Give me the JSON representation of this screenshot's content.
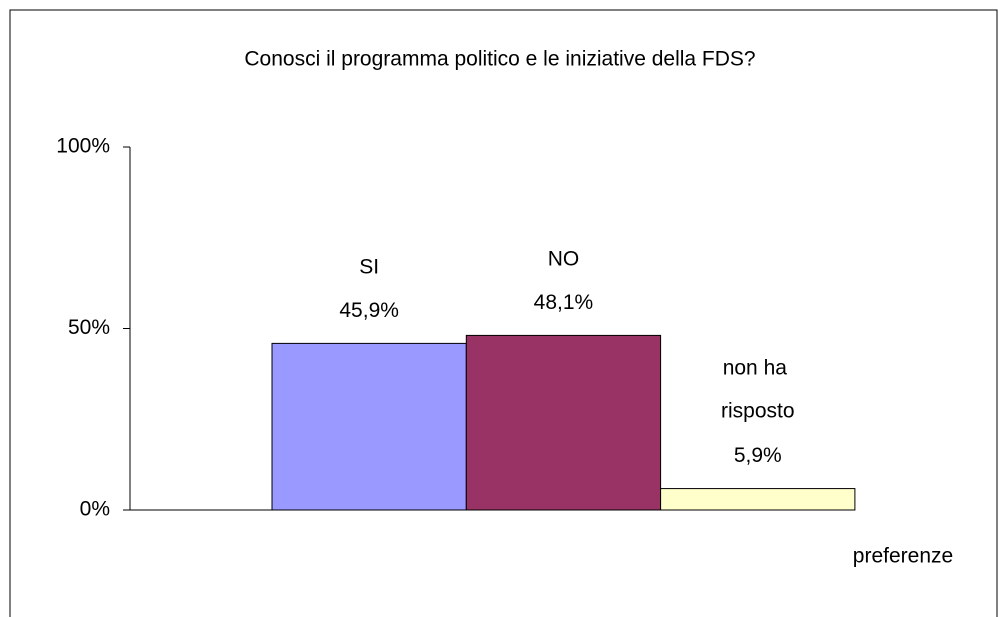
{
  "chart_data": {
    "type": "bar",
    "title": "Conosci il programma politico e le iniziative della FDS?",
    "x_label": "preferenze",
    "categories": [
      null
    ],
    "series": [
      {
        "name": "SI",
        "color": "#9999ff",
        "values": [
          45.9
        ],
        "value_labels": [
          "45,9%"
        ]
      },
      {
        "name": "NO",
        "color": "#993366",
        "values": [
          48.1
        ],
        "value_labels": [
          "48,1%"
        ]
      },
      {
        "name": "non ha risposto",
        "color": "#ffffcc",
        "values": [
          5.9
        ],
        "value_labels": [
          "5,9%"
        ]
      }
    ],
    "ylim": [
      0,
      100
    ],
    "yticks": [
      {
        "value": 0,
        "label": "0%"
      },
      {
        "value": 50,
        "label": "50%"
      },
      {
        "value": 100,
        "label": "100%"
      }
    ],
    "grid": false
  }
}
